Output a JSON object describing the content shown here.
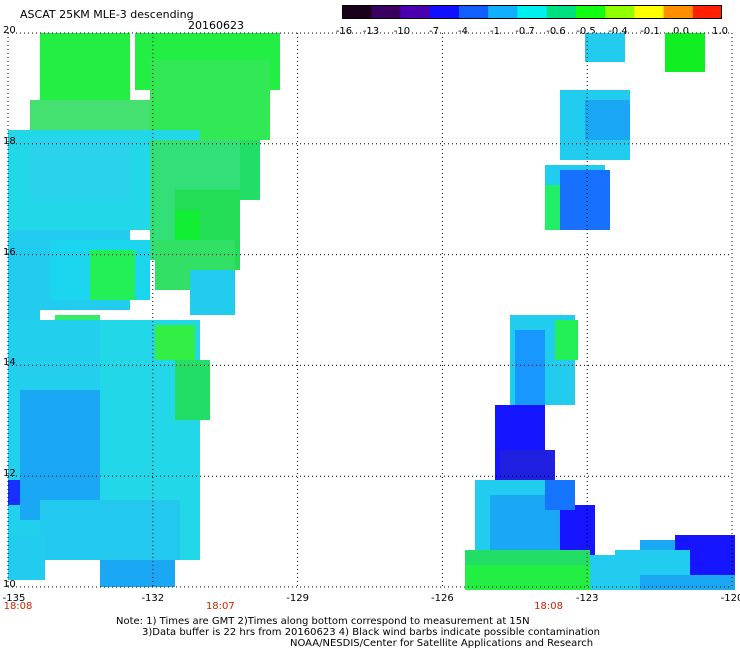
{
  "header": {
    "title": "ASCAT 25KM MLE-3 descending",
    "date": "20160623"
  },
  "colorbar": {
    "labels": [
      "-16",
      "-13",
      "-10",
      "-7",
      "-4",
      "-1",
      "-0.7",
      "-0.6",
      "-0.5",
      "-0.4",
      "-0.1",
      "0.0",
      "1.0"
    ],
    "colors": [
      "#1a0018",
      "#3a0060",
      "#4a00b0",
      "#1010ff",
      "#1060ff",
      "#10b0ff",
      "#00f0f0",
      "#00e080",
      "#10ff10",
      "#90ff00",
      "#ffff00",
      "#ff9000",
      "#ff2000"
    ]
  },
  "axes": {
    "lon_labels": [
      "-135",
      "-132",
      "-129",
      "-126",
      "-123",
      "-120"
    ],
    "lat_labels": [
      "20",
      "18",
      "16",
      "14",
      "12",
      "10"
    ],
    "lon_range": [
      -135,
      -120
    ],
    "lat_range": [
      10,
      20
    ],
    "time_labels": [
      {
        "text": "18:08",
        "lon": -135
      },
      {
        "text": "18:07",
        "lon": -130.6
      },
      {
        "text": "18:08",
        "lon": -123.8
      }
    ]
  },
  "notes": {
    "line1": "Note: 1) Times are GMT 2)Times along bottom correspond to measurement at 15N",
    "line2": "3)Data buffer is 22 hrs from 20160623 4) Black wind barbs indicate possible contamination",
    "line3": "NOAA/NESDIS/Center for Satellite Applications and Research"
  }
}
